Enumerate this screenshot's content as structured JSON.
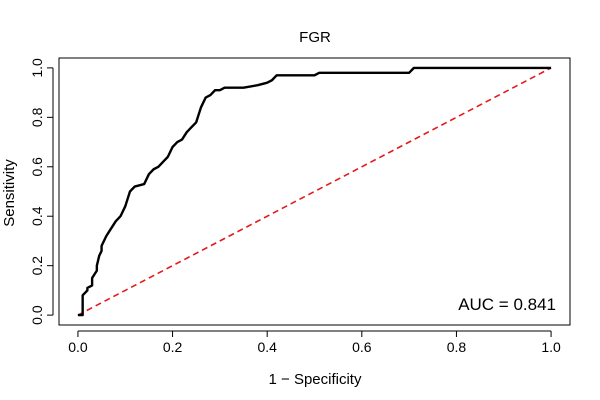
{
  "chart_data": {
    "type": "line",
    "title": "FGR",
    "xlabel": "1 − Specificity",
    "ylabel": "Sensitivity",
    "xlim": [
      -0.04,
      1.04
    ],
    "ylim": [
      -0.04,
      1.04
    ],
    "x_ticks": [
      0.0,
      0.2,
      0.4,
      0.6,
      0.8,
      1.0
    ],
    "y_ticks": [
      0.0,
      0.2,
      0.4,
      0.6,
      0.8,
      1.0
    ],
    "x_tick_labels": [
      "0.0",
      "0.2",
      "0.4",
      "0.6",
      "0.8",
      "1.0"
    ],
    "y_tick_labels": [
      "0.0",
      "0.2",
      "0.4",
      "0.6",
      "0.8",
      "1.0"
    ],
    "grid": false,
    "annotation": "AUC = 0.841",
    "series": [
      {
        "color": "#000000",
        "style": "solid",
        "x": [
          0.0,
          0.01,
          0.01,
          0.02,
          0.02,
          0.03,
          0.03,
          0.04,
          0.04,
          0.045,
          0.05,
          0.05,
          0.06,
          0.07,
          0.08,
          0.09,
          0.1,
          0.11,
          0.12,
          0.14,
          0.15,
          0.16,
          0.17,
          0.18,
          0.19,
          0.2,
          0.21,
          0.22,
          0.23,
          0.24,
          0.25,
          0.26,
          0.27,
          0.28,
          0.29,
          0.3,
          0.31,
          0.32,
          0.35,
          0.38,
          0.4,
          0.41,
          0.42,
          0.45,
          0.5,
          0.51,
          0.6,
          0.7,
          0.71,
          0.8,
          0.9,
          1.0
        ],
        "y": [
          0.0,
          0.0,
          0.08,
          0.1,
          0.11,
          0.12,
          0.15,
          0.18,
          0.2,
          0.24,
          0.26,
          0.28,
          0.32,
          0.35,
          0.38,
          0.4,
          0.44,
          0.5,
          0.52,
          0.53,
          0.57,
          0.59,
          0.6,
          0.62,
          0.64,
          0.68,
          0.7,
          0.71,
          0.74,
          0.76,
          0.78,
          0.84,
          0.88,
          0.89,
          0.91,
          0.91,
          0.92,
          0.92,
          0.92,
          0.93,
          0.94,
          0.95,
          0.97,
          0.97,
          0.97,
          0.98,
          0.98,
          0.98,
          1.0,
          1.0,
          1.0,
          1.0
        ]
      },
      {
        "color": "#e31a1c",
        "style": "dashed",
        "x": [
          0.0,
          1.0
        ],
        "y": [
          0.0,
          1.0
        ]
      }
    ]
  }
}
